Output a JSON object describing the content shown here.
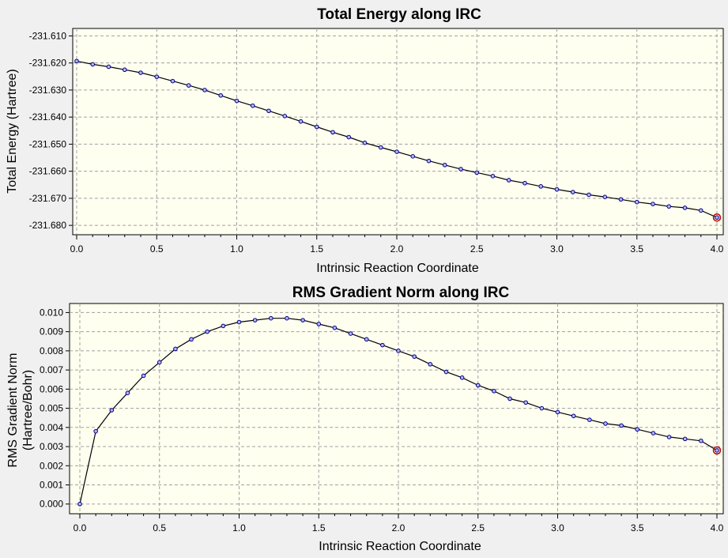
{
  "colors": {
    "background": "#f0f0f0",
    "plot_area": "#fffff0",
    "grid": "#a0a0a0",
    "line": "#000000",
    "marker_fill": "#b4b4ff",
    "marker_stroke": "#000080",
    "highlight": "#c00000"
  },
  "chart_data": [
    {
      "type": "line",
      "title": "Total Energy along IRC",
      "xlabel": "Intrinsic Reaction Coordinate",
      "ylabel": "Total Energy (Hartree)",
      "xlim": [
        0,
        4
      ],
      "ylim": [
        -231.682,
        -231.609
      ],
      "xticks": [
        "0.0",
        "0.5",
        "1.0",
        "1.5",
        "2.0",
        "2.5",
        "3.0",
        "3.5",
        "4.0"
      ],
      "yticks": [
        "-231.610",
        "-231.620",
        "-231.630",
        "-231.640",
        "-231.650",
        "-231.660",
        "-231.670",
        "-231.680"
      ],
      "grid": true,
      "highlighted_point_index": 40,
      "x": [
        0.0,
        0.1,
        0.2,
        0.3,
        0.4,
        0.5,
        0.6,
        0.7,
        0.8,
        0.9,
        1.0,
        1.1,
        1.2,
        1.3,
        1.4,
        1.5,
        1.6,
        1.7,
        1.8,
        1.9,
        2.0,
        2.1,
        2.2,
        2.3,
        2.4,
        2.5,
        2.6,
        2.7,
        2.8,
        2.9,
        3.0,
        3.1,
        3.2,
        3.3,
        3.4,
        3.5,
        3.6,
        3.7,
        3.8,
        3.9,
        4.0
      ],
      "y": [
        -231.6193,
        -231.6205,
        -231.6214,
        -231.6225,
        -231.6236,
        -231.6251,
        -231.6267,
        -231.6283,
        -231.63,
        -231.632,
        -231.634,
        -231.6358,
        -231.6377,
        -231.6396,
        -231.6416,
        -231.6436,
        -231.6456,
        -231.6474,
        -231.6495,
        -231.6512,
        -231.6528,
        -231.6545,
        -231.6562,
        -231.6577,
        -231.6592,
        -231.6605,
        -231.6618,
        -231.6633,
        -231.6644,
        -231.6656,
        -231.6667,
        -231.6677,
        -231.6687,
        -231.6695,
        -231.6704,
        -231.6714,
        -231.6721,
        -231.673,
        -231.6735,
        -231.6745,
        -231.6771
      ]
    },
    {
      "type": "line",
      "title": "RMS Gradient Norm along IRC",
      "xlabel": "Intrinsic Reaction Coordinate",
      "ylabel": [
        "RMS Gradient Norm",
        "(Hartree/Bohr)"
      ],
      "xlim": [
        0,
        4
      ],
      "ylim": [
        -0.0003,
        0.0101
      ],
      "xticks": [
        "0.0",
        "0.5",
        "1.0",
        "1.5",
        "2.0",
        "2.5",
        "3.0",
        "3.5",
        "4.0"
      ],
      "yticks": [
        "0.010",
        "0.009",
        "0.008",
        "0.007",
        "0.006",
        "0.005",
        "0.004",
        "0.003",
        "0.002",
        "0.001",
        "0.000"
      ],
      "grid": true,
      "highlighted_point_index": 40,
      "x": [
        0.0,
        0.1,
        0.2,
        0.3,
        0.4,
        0.5,
        0.6,
        0.7,
        0.8,
        0.9,
        1.0,
        1.1,
        1.2,
        1.3,
        1.4,
        1.5,
        1.6,
        1.7,
        1.8,
        1.9,
        2.0,
        2.1,
        2.2,
        2.3,
        2.4,
        2.5,
        2.6,
        2.7,
        2.8,
        2.9,
        3.0,
        3.1,
        3.2,
        3.3,
        3.4,
        3.5,
        3.6,
        3.7,
        3.8,
        3.9,
        4.0
      ],
      "y": [
        0.0,
        0.0038,
        0.0049,
        0.0058,
        0.0067,
        0.0074,
        0.0081,
        0.0086,
        0.009,
        0.0093,
        0.0095,
        0.0096,
        0.0097,
        0.0097,
        0.0096,
        0.0094,
        0.0092,
        0.0089,
        0.0086,
        0.0083,
        0.008,
        0.0077,
        0.0073,
        0.0069,
        0.0066,
        0.0062,
        0.0059,
        0.0055,
        0.0053,
        0.005,
        0.0048,
        0.0046,
        0.0044,
        0.0042,
        0.0041,
        0.0039,
        0.0037,
        0.0035,
        0.0034,
        0.0033,
        0.0028
      ]
    }
  ]
}
